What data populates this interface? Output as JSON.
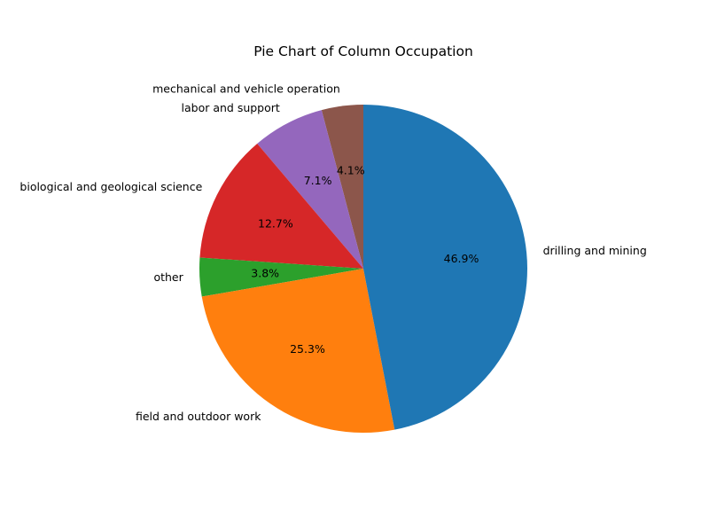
{
  "chart_data": {
    "type": "pie",
    "title": "Pie Chart of Column Occupation",
    "start_angle_deg": 90,
    "direction": "counterclockwise",
    "slices": [
      {
        "label": "mechanical and vehicle operation",
        "value": 4.1,
        "pct_label": "4.1%",
        "color": "#8c564b"
      },
      {
        "label": "labor and support",
        "value": 7.1,
        "pct_label": "7.1%",
        "color": "#9467bd"
      },
      {
        "label": "biological and geological science",
        "value": 12.7,
        "pct_label": "12.7%",
        "color": "#d62728"
      },
      {
        "label": "other",
        "value": 3.8,
        "pct_label": "3.8%",
        "color": "#2ca02c"
      },
      {
        "label": "field and outdoor work",
        "value": 25.3,
        "pct_label": "25.3%",
        "color": "#ff7f0e"
      },
      {
        "label": "drilling and mining",
        "value": 46.9,
        "pct_label": "46.9%",
        "color": "#1f77b4"
      }
    ]
  }
}
